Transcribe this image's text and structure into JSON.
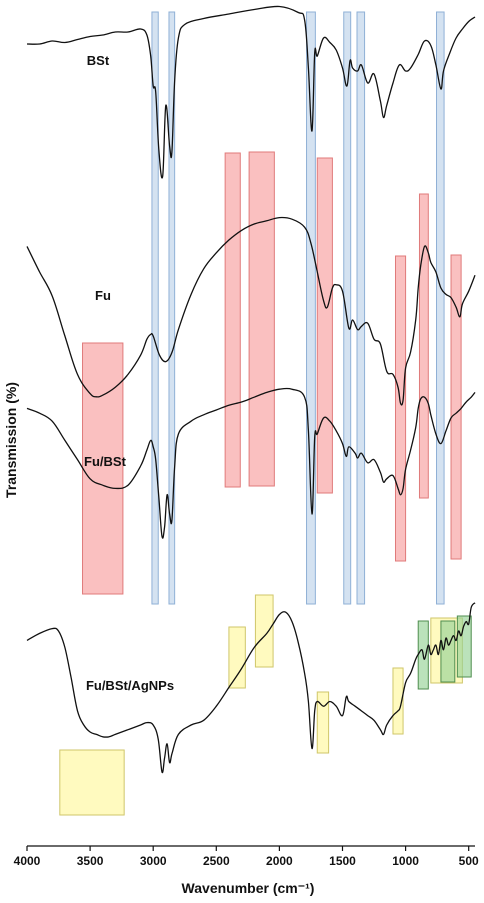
{
  "chart_data": {
    "type": "line",
    "title": "",
    "xlabel": "Wavenumber (cm⁻¹)",
    "ylabel": "Transmission (%)",
    "xlim": [
      4000,
      450
    ],
    "x_reversed": true,
    "xticks": [
      4000,
      3500,
      3000,
      2500,
      2000,
      1500,
      1000,
      500
    ],
    "grid": false,
    "legend": "none",
    "series": [
      {
        "name": "BSt",
        "points": [
          [
            4000,
            96
          ],
          [
            3900,
            96
          ],
          [
            3800,
            98
          ],
          [
            3700,
            97
          ],
          [
            3600,
            99
          ],
          [
            3500,
            101
          ],
          [
            3400,
            102
          ],
          [
            3300,
            104
          ],
          [
            3200,
            104
          ],
          [
            3100,
            106
          ],
          [
            3050,
            102
          ],
          [
            3020,
            88
          ],
          [
            3000,
            68
          ],
          [
            2980,
            64
          ],
          [
            2955,
            25
          ],
          [
            2925,
            8
          ],
          [
            2900,
            55
          ],
          [
            2870,
            28
          ],
          [
            2852,
            24
          ],
          [
            2830,
            72
          ],
          [
            2800,
            100
          ],
          [
            2750,
            109
          ],
          [
            2600,
            113
          ],
          [
            2400,
            116
          ],
          [
            2200,
            119
          ],
          [
            2000,
            121
          ],
          [
            1850,
            117
          ],
          [
            1800,
            112
          ],
          [
            1770,
            80
          ],
          [
            1742,
            38
          ],
          [
            1720,
            90
          ],
          [
            1700,
            88
          ],
          [
            1650,
            100
          ],
          [
            1600,
            97
          ],
          [
            1550,
            92
          ],
          [
            1500,
            80
          ],
          [
            1465,
            68
          ],
          [
            1440,
            85
          ],
          [
            1420,
            80
          ],
          [
            1380,
            78
          ],
          [
            1350,
            82
          ],
          [
            1300,
            70
          ],
          [
            1250,
            76
          ],
          [
            1200,
            58
          ],
          [
            1175,
            47
          ],
          [
            1150,
            55
          ],
          [
            1100,
            70
          ],
          [
            1050,
            82
          ],
          [
            1000,
            78
          ],
          [
            960,
            80
          ],
          [
            900,
            89
          ],
          [
            850,
            98
          ],
          [
            800,
            95
          ],
          [
            760,
            82
          ],
          [
            720,
            66
          ],
          [
            700,
            78
          ],
          [
            650,
            90
          ],
          [
            600,
            100
          ],
          [
            550,
            106
          ],
          [
            500,
            111
          ],
          [
            450,
            114
          ]
        ]
      },
      {
        "name": "Fu",
        "points": [
          [
            4000,
            96
          ],
          [
            3900,
            80
          ],
          [
            3800,
            65
          ],
          [
            3700,
            40
          ],
          [
            3600,
            16
          ],
          [
            3500,
            4
          ],
          [
            3450,
            2
          ],
          [
            3400,
            3
          ],
          [
            3300,
            8
          ],
          [
            3200,
            16
          ],
          [
            3100,
            28
          ],
          [
            3050,
            38
          ],
          [
            3020,
            41
          ],
          [
            3000,
            40
          ],
          [
            2950,
            28
          ],
          [
            2900,
            24
          ],
          [
            2850,
            30
          ],
          [
            2800,
            44
          ],
          [
            2700,
            66
          ],
          [
            2600,
            82
          ],
          [
            2500,
            92
          ],
          [
            2400,
            100
          ],
          [
            2300,
            106
          ],
          [
            2200,
            110
          ],
          [
            2100,
            112
          ],
          [
            2000,
            114
          ],
          [
            1900,
            113
          ],
          [
            1800,
            108
          ],
          [
            1750,
            98
          ],
          [
            1700,
            80
          ],
          [
            1650,
            62
          ],
          [
            1620,
            58
          ],
          [
            1580,
            70
          ],
          [
            1550,
            72
          ],
          [
            1500,
            68
          ],
          [
            1450,
            45
          ],
          [
            1420,
            50
          ],
          [
            1380,
            44
          ],
          [
            1350,
            46
          ],
          [
            1300,
            48
          ],
          [
            1250,
            38
          ],
          [
            1200,
            35
          ],
          [
            1150,
            18
          ],
          [
            1100,
            16
          ],
          [
            1060,
            8
          ],
          [
            1040,
            -2
          ],
          [
            1020,
            0
          ],
          [
            1000,
            20
          ],
          [
            960,
            30
          ],
          [
            920,
            50
          ],
          [
            900,
            70
          ],
          [
            880,
            84
          ],
          [
            850,
            96
          ],
          [
            820,
            92
          ],
          [
            800,
            86
          ],
          [
            760,
            80
          ],
          [
            720,
            70
          ],
          [
            680,
            66
          ],
          [
            640,
            64
          ],
          [
            600,
            58
          ],
          [
            570,
            52
          ],
          [
            550,
            60
          ],
          [
            500,
            68
          ],
          [
            450,
            78
          ]
        ]
      },
      {
        "name": "Fu/BSt",
        "points": [
          [
            4000,
            96
          ],
          [
            3900,
            93
          ],
          [
            3800,
            88
          ],
          [
            3700,
            76
          ],
          [
            3600,
            64
          ],
          [
            3500,
            52
          ],
          [
            3400,
            48
          ],
          [
            3300,
            46
          ],
          [
            3200,
            48
          ],
          [
            3100,
            60
          ],
          [
            3050,
            70
          ],
          [
            3020,
            76
          ],
          [
            3000,
            72
          ],
          [
            2980,
            64
          ],
          [
            2955,
            40
          ],
          [
            2930,
            16
          ],
          [
            2910,
            22
          ],
          [
            2890,
            42
          ],
          [
            2870,
            30
          ],
          [
            2852,
            26
          ],
          [
            2830,
            60
          ],
          [
            2800,
            80
          ],
          [
            2700,
            88
          ],
          [
            2600,
            92
          ],
          [
            2500,
            95
          ],
          [
            2400,
            98
          ],
          [
            2300,
            100
          ],
          [
            2200,
            103
          ],
          [
            2100,
            106
          ],
          [
            2000,
            108
          ],
          [
            1900,
            108
          ],
          [
            1800,
            103
          ],
          [
            1770,
            82
          ],
          [
            1742,
            30
          ],
          [
            1720,
            78
          ],
          [
            1700,
            80
          ],
          [
            1650,
            90
          ],
          [
            1600,
            88
          ],
          [
            1550,
            82
          ],
          [
            1500,
            74
          ],
          [
            1470,
            66
          ],
          [
            1450,
            72
          ],
          [
            1400,
            68
          ],
          [
            1380,
            65
          ],
          [
            1350,
            68
          ],
          [
            1300,
            62
          ],
          [
            1250,
            64
          ],
          [
            1200,
            56
          ],
          [
            1175,
            50
          ],
          [
            1150,
            52
          ],
          [
            1100,
            54
          ],
          [
            1060,
            46
          ],
          [
            1040,
            42
          ],
          [
            1020,
            46
          ],
          [
            1000,
            58
          ],
          [
            960,
            70
          ],
          [
            920,
            84
          ],
          [
            900,
            96
          ],
          [
            880,
            102
          ],
          [
            850,
            103
          ],
          [
            820,
            99
          ],
          [
            800,
            92
          ],
          [
            760,
            80
          ],
          [
            720,
            74
          ],
          [
            680,
            82
          ],
          [
            640,
            90
          ],
          [
            600,
            93
          ],
          [
            560,
            96
          ],
          [
            520,
            100
          ],
          [
            480,
            103
          ],
          [
            450,
            106
          ]
        ]
      },
      {
        "name": "Fu/BSt/AgNPs",
        "points": [
          [
            4000,
            96
          ],
          [
            3900,
            99
          ],
          [
            3800,
            101
          ],
          [
            3750,
            100
          ],
          [
            3700,
            93
          ],
          [
            3650,
            80
          ],
          [
            3600,
            66
          ],
          [
            3550,
            60
          ],
          [
            3500,
            57
          ],
          [
            3450,
            56
          ],
          [
            3400,
            55
          ],
          [
            3350,
            55
          ],
          [
            3300,
            56
          ],
          [
            3200,
            58
          ],
          [
            3100,
            60
          ],
          [
            3050,
            61
          ],
          [
            3000,
            60
          ],
          [
            2960,
            54
          ],
          [
            2930,
            40
          ],
          [
            2910,
            46
          ],
          [
            2890,
            52
          ],
          [
            2870,
            44
          ],
          [
            2850,
            48
          ],
          [
            2800,
            56
          ],
          [
            2700,
            60
          ],
          [
            2600,
            62
          ],
          [
            2500,
            68
          ],
          [
            2400,
            76
          ],
          [
            2300,
            84
          ],
          [
            2200,
            93
          ],
          [
            2100,
            99
          ],
          [
            2050,
            103
          ],
          [
            2000,
            107
          ],
          [
            1950,
            108
          ],
          [
            1900,
            104
          ],
          [
            1850,
            95
          ],
          [
            1800,
            82
          ],
          [
            1770,
            70
          ],
          [
            1742,
            50
          ],
          [
            1720,
            66
          ],
          [
            1700,
            70
          ],
          [
            1650,
            68
          ],
          [
            1600,
            70
          ],
          [
            1550,
            68
          ],
          [
            1500,
            64
          ],
          [
            1470,
            72
          ],
          [
            1450,
            70
          ],
          [
            1400,
            68
          ],
          [
            1350,
            66
          ],
          [
            1300,
            64
          ],
          [
            1250,
            62
          ],
          [
            1200,
            58
          ],
          [
            1175,
            56
          ],
          [
            1150,
            60
          ],
          [
            1100,
            64
          ],
          [
            1060,
            66
          ],
          [
            1040,
            68
          ],
          [
            1000,
            78
          ],
          [
            960,
            82
          ],
          [
            920,
            88
          ],
          [
            900,
            90
          ],
          [
            870,
            92
          ],
          [
            850,
            88
          ],
          [
            820,
            94
          ],
          [
            800,
            90
          ],
          [
            780,
            92
          ],
          [
            760,
            94
          ],
          [
            740,
            90
          ],
          [
            720,
            96
          ],
          [
            700,
            92
          ],
          [
            680,
            97
          ],
          [
            660,
            94
          ],
          [
            640,
            96
          ],
          [
            620,
            98
          ],
          [
            600,
            96
          ],
          [
            580,
            100
          ],
          [
            560,
            98
          ],
          [
            540,
            102
          ],
          [
            520,
            104
          ],
          [
            500,
            103
          ],
          [
            480,
            110
          ],
          [
            450,
            112
          ]
        ]
      }
    ],
    "bands": [
      {
        "color": "blue",
        "ranges": [
          [
            3010,
            2960
          ],
          [
            2875,
            2830
          ],
          [
            1785,
            1715
          ],
          [
            1490,
            1435
          ],
          [
            1385,
            1325
          ],
          [
            755,
            695
          ]
        ]
      },
      {
        "color": "red",
        "ranges": [
          [
            3560,
            3240
          ],
          [
            2430,
            2310
          ],
          [
            2240,
            2040
          ],
          [
            1700,
            1580
          ],
          [
            1080,
            1000
          ],
          [
            890,
            820
          ],
          [
            640,
            560
          ]
        ]
      },
      {
        "color": "yellow",
        "ranges": [
          [
            3740,
            3230
          ],
          [
            2400,
            2270
          ],
          [
            2190,
            2050
          ],
          [
            1700,
            1610
          ],
          [
            1100,
            1020
          ],
          [
            800,
            550
          ]
        ]
      },
      {
        "color": "green",
        "ranges": [
          [
            900,
            820
          ],
          [
            720,
            610
          ],
          [
            590,
            480
          ]
        ]
      }
    ]
  }
}
